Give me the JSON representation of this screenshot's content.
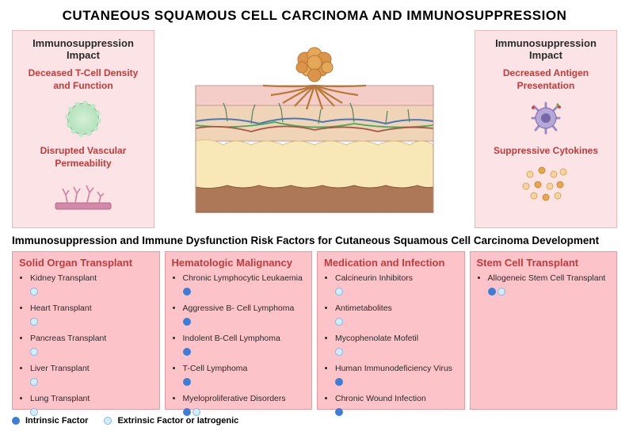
{
  "title": "CUTANEOUS SQUAMOUS CELL CARCINOMA AND IMMUNOSUPPRESSION",
  "colors": {
    "impact_bg": "#fce4e6",
    "risk_bg": "#fcc4c9",
    "accent_red": "#c23b3b",
    "intrinsic": "#3b7dd8",
    "extrinsic": "#d4ecff",
    "tcell_green": "#b8e4c0",
    "dendritic_purple": "#9b8cc4",
    "cytokine_orange": "#e8a84c",
    "cytokine_light": "#f4d4a0",
    "vessel_pink": "#d488a8"
  },
  "left_box": {
    "title": "Immunosuppression Impact",
    "item1": "Deceased T-Cell Density and Function",
    "item2": "Disrupted Vascular Permeability"
  },
  "right_box": {
    "title": "Immunosuppression Impact",
    "item1": "Decreased Antigen Presentation",
    "item2": "Suppressive Cytokines"
  },
  "skin": {
    "tumor_color": "#dc9548",
    "epidermis": "#f4ccc8",
    "dermis": "#f0d4b8",
    "subcutis_light": "#f8e8b8",
    "subcutis_dark": "#ac7858",
    "vessel_blue": "#4878b8",
    "vessel_green": "#48a858",
    "vessel_red": "#a85848"
  },
  "risk_section_title": "Immunosuppression and Immune Dysfunction Risk Factors for Cutaneous Squamous Cell Carcinoma Development",
  "columns": [
    {
      "title": "Solid Organ Transplant",
      "items": [
        {
          "label": "Kidney Transplant",
          "dots": [
            "extrinsic"
          ]
        },
        {
          "label": "Heart Transplant",
          "dots": [
            "extrinsic"
          ]
        },
        {
          "label": "Pancreas Transplant",
          "dots": [
            "extrinsic"
          ]
        },
        {
          "label": "Liver Transplant",
          "dots": [
            "extrinsic"
          ]
        },
        {
          "label": "Lung Transplant",
          "dots": [
            "extrinsic"
          ]
        }
      ]
    },
    {
      "title": "Hematologic Malignancy",
      "items": [
        {
          "label": "Chronic Lymphocytic Leukaemia",
          "dots": [
            "intrinsic"
          ]
        },
        {
          "label": "Aggressive B- Cell Lymphoma",
          "dots": [
            "intrinsic"
          ]
        },
        {
          "label": "Indolent B-Cell Lymphoma",
          "dots": [
            "intrinsic"
          ]
        },
        {
          "label": "T-Cell Lymphoma",
          "dots": [
            "intrinsic"
          ]
        },
        {
          "label": "Myeloproliferative Disorders",
          "dots": [
            "intrinsic",
            "extrinsic"
          ]
        }
      ]
    },
    {
      "title": "Medication and Infection",
      "items": [
        {
          "label": "Calcineurin Inhibitors",
          "dots": [
            "extrinsic"
          ]
        },
        {
          "label": "Antimetabolites",
          "dots": [
            "extrinsic"
          ]
        },
        {
          "label": "Mycophenolate Mofetil",
          "dots": [
            "extrinsic"
          ]
        },
        {
          "label": "Human Immunodeficiency Virus",
          "dots": [
            "intrinsic"
          ]
        },
        {
          "label": "Chronic Wound Infection",
          "dots": [
            "intrinsic"
          ]
        }
      ]
    },
    {
      "title": "Stem Cell Transplant",
      "items": [
        {
          "label": "Allogeneic Stem Cell Transplant",
          "dots": [
            "intrinsic",
            "extrinsic"
          ]
        }
      ]
    }
  ],
  "legend": {
    "intrinsic": "Intrinsic Factor",
    "extrinsic": "Extrinsic Factor or Iatrogenic"
  }
}
